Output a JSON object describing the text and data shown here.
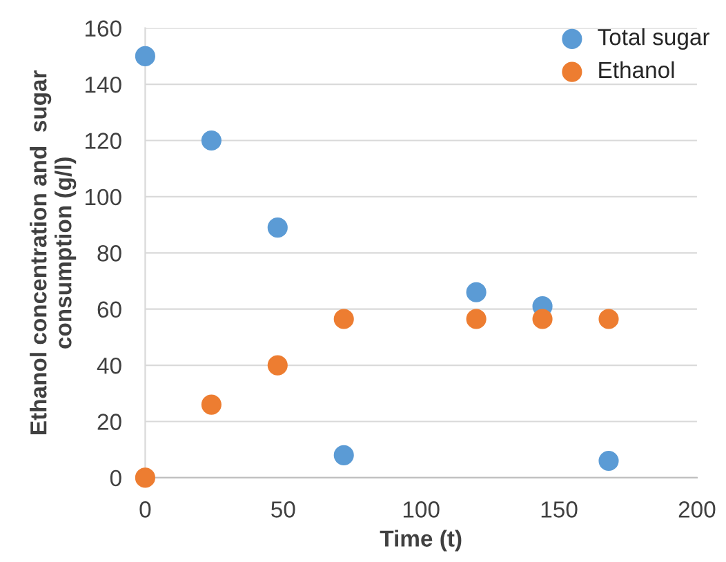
{
  "chart_data": {
    "type": "scatter",
    "xlabel": "Time (t)",
    "ylabel": "Ethanol concentration and  sugar\nconsumption (g/l)",
    "xlim": [
      0,
      200
    ],
    "xticks": [
      0,
      50,
      100,
      150,
      200
    ],
    "ylim": [
      0,
      160
    ],
    "yticks": [
      0,
      20,
      40,
      60,
      80,
      100,
      120,
      140,
      160
    ],
    "grid": "y",
    "legend": "top right",
    "marker": "circle",
    "series": [
      {
        "name": "Total sugar",
        "color": "#5b9bd5",
        "x": [
          0,
          24,
          48,
          72,
          120,
          144,
          168
        ],
        "values": [
          150,
          120,
          89,
          8,
          66,
          61,
          6
        ]
      },
      {
        "name": "Ethanol",
        "color": "#ed7d31",
        "x": [
          0,
          24,
          48,
          72,
          120,
          144,
          168
        ],
        "values": [
          0,
          26,
          40,
          56.5,
          56.5,
          56.5,
          56.5
        ]
      }
    ]
  }
}
